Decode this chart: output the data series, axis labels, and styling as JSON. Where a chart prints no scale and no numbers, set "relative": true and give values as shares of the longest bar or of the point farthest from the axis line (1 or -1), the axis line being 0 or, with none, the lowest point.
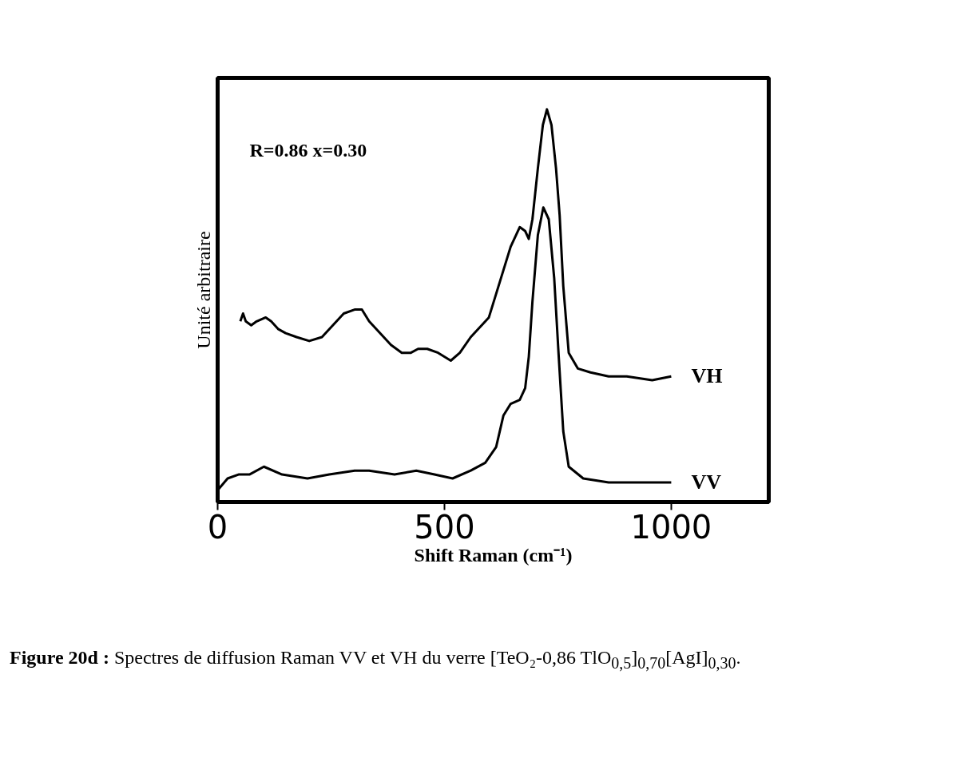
{
  "chart_data": {
    "type": "line",
    "relative": true,
    "xlabel": "Shift Raman (cm⁻¹)",
    "ylabel": "Unité arbitraire",
    "xlim": [
      0,
      1215
    ],
    "xticks": [
      0,
      500,
      1000
    ],
    "legend": false,
    "grid": false,
    "annotations": [
      "R=0.86  x=0.30",
      "Figure 20d : Spectres de diffusion Raman VV et VH du verre [TeO₂-0,86 TlO$_{0,5}$]$_{0,70}$[AgI]$_{0,30}$."
    ],
    "series": [
      {
        "name": "VH",
        "color": "#000000",
        "x": [
          50,
          56,
          62,
          74,
          86,
          106,
          118,
          134,
          150,
          174,
          202,
          230,
          254,
          278,
          302,
          318,
          334,
          358,
          382,
          406,
          426,
          442,
          462,
          486,
          514,
          534,
          558,
          598,
          614,
          630,
          646,
          666,
          678,
          686,
          694,
          706,
          717,
          726,
          736,
          746,
          754,
          762,
          774,
          794,
          822,
          862,
          902,
          958,
          1000
        ],
        "values": [
          0.46,
          0.48,
          0.46,
          0.45,
          0.46,
          0.47,
          0.46,
          0.44,
          0.43,
          0.42,
          0.41,
          0.42,
          0.45,
          0.48,
          0.49,
          0.49,
          0.46,
          0.43,
          0.4,
          0.38,
          0.38,
          0.39,
          0.39,
          0.38,
          0.36,
          0.38,
          0.42,
          0.47,
          0.53,
          0.59,
          0.65,
          0.7,
          0.69,
          0.67,
          0.72,
          0.85,
          0.96,
          1.0,
          0.96,
          0.85,
          0.73,
          0.55,
          0.38,
          0.34,
          0.33,
          0.32,
          0.32,
          0.31,
          0.32
        ]
      },
      {
        "name": "VV",
        "color": "#000000",
        "x": [
          0,
          22,
          46,
          70,
          102,
          142,
          198,
          246,
          302,
          334,
          390,
          438,
          478,
          518,
          558,
          590,
          614,
          630,
          646,
          666,
          678,
          686,
          694,
          706,
          718,
          730,
          742,
          752,
          762,
          774,
          806,
          862,
          942,
          1000
        ],
        "values": [
          0.03,
          0.06,
          0.07,
          0.07,
          0.09,
          0.07,
          0.06,
          0.07,
          0.08,
          0.08,
          0.07,
          0.08,
          0.07,
          0.06,
          0.08,
          0.1,
          0.14,
          0.22,
          0.25,
          0.26,
          0.29,
          0.37,
          0.51,
          0.68,
          0.75,
          0.72,
          0.57,
          0.37,
          0.18,
          0.09,
          0.06,
          0.05,
          0.05,
          0.05
        ]
      }
    ]
  }
}
